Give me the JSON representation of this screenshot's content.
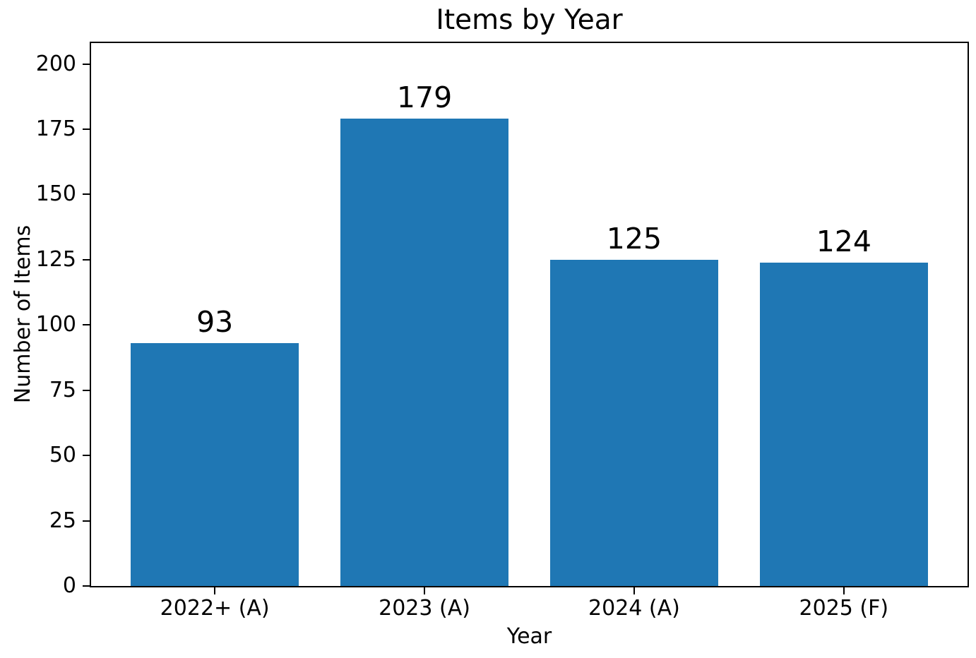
{
  "chart_data": {
    "type": "bar",
    "title": "Items by Year",
    "xlabel": "Year",
    "ylabel": "Number of Items",
    "categories": [
      "2022+ (A)",
      "2023 (A)",
      "2024 (A)",
      "2025 (F)"
    ],
    "values": [
      93,
      179,
      125,
      124
    ],
    "bar_value_labels": [
      "93",
      "179",
      "125",
      "124"
    ],
    "yticks": [
      0,
      25,
      50,
      75,
      100,
      125,
      150,
      175,
      200
    ],
    "ylim": [
      0,
      208
    ],
    "xlim": [
      -0.59,
      3.59
    ],
    "bar_width": 0.8,
    "bar_color": "#1f77b4",
    "axis_color": "#000000",
    "text_color": "#000000",
    "background_color": "#ffffff",
    "grid": false,
    "legend_position": "none"
  }
}
